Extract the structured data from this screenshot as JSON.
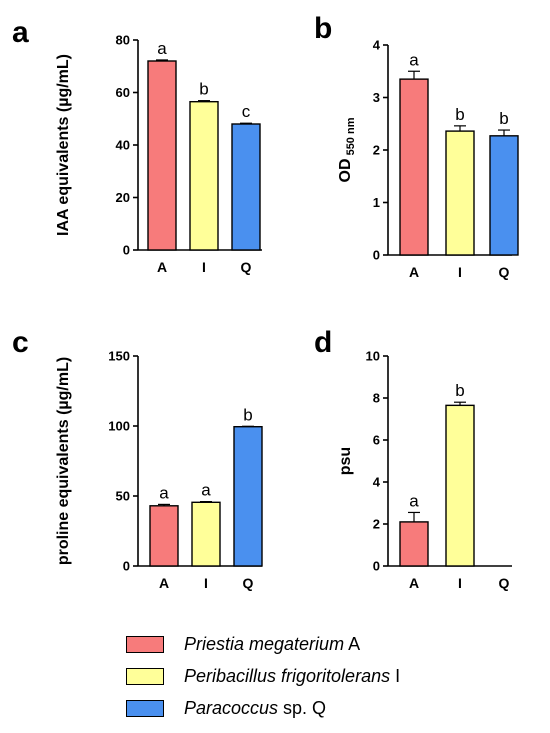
{
  "legend": [
    {
      "italic": "Priestia megaterium",
      "suffix": " A",
      "color": "#f77b7b"
    },
    {
      "italic": "Peribacillus frigoritolerans",
      "suffix": " I",
      "color": "#ffff99"
    },
    {
      "italic": "Paracoccus",
      "suffix": " sp. Q",
      "color": "#4a90ef"
    }
  ],
  "chart_data": [
    {
      "panel": "a",
      "type": "bar",
      "categories": [
        "A",
        "I",
        "Q"
      ],
      "values": [
        72,
        56.5,
        48
      ],
      "errors": [
        0.4,
        0.4,
        0.3
      ],
      "significance": [
        "a",
        "b",
        "c"
      ],
      "ylabel": "IAA equivalents (µg/mL)",
      "ylim": [
        0,
        80
      ],
      "yticks": [
        0,
        20,
        40,
        60,
        80
      ],
      "colors": [
        "#f77b7b",
        "#ffff99",
        "#4a90ef"
      ]
    },
    {
      "panel": "b",
      "type": "bar",
      "categories": [
        "A",
        "I",
        "Q"
      ],
      "values": [
        3.35,
        2.36,
        2.27
      ],
      "errors": [
        0.15,
        0.1,
        0.11
      ],
      "significance": [
        "a",
        "b",
        "b"
      ],
      "ylabel": "OD",
      "ylabel_sub": "550 nm",
      "ylim": [
        0,
        4
      ],
      "yticks": [
        0,
        1,
        2,
        3,
        4
      ],
      "colors": [
        "#f77b7b",
        "#ffff99",
        "#4a90ef"
      ]
    },
    {
      "panel": "c",
      "type": "bar",
      "categories": [
        "A",
        "I",
        "Q"
      ],
      "values": [
        43,
        45.5,
        99.5
      ],
      "errors": [
        1,
        0.5,
        0.3
      ],
      "significance": [
        "a",
        "a",
        "b"
      ],
      "ylabel": "proline equivalents (µg/mL)",
      "ylim": [
        0,
        150
      ],
      "yticks": [
        0,
        50,
        100,
        150
      ],
      "colors": [
        "#f77b7b",
        "#ffff99",
        "#4a90ef"
      ]
    },
    {
      "panel": "d",
      "type": "bar",
      "categories": [
        "A",
        "I",
        "Q"
      ],
      "values": [
        2.1,
        7.65,
        0
      ],
      "errors": [
        0.45,
        0.15,
        0
      ],
      "significance": [
        "a",
        "b",
        ""
      ],
      "ylabel": "psu",
      "ylim": [
        0,
        10
      ],
      "yticks": [
        0,
        2,
        4,
        6,
        8,
        10
      ],
      "colors": [
        "#f77b7b",
        "#ffff99",
        "#4a90ef"
      ]
    }
  ]
}
